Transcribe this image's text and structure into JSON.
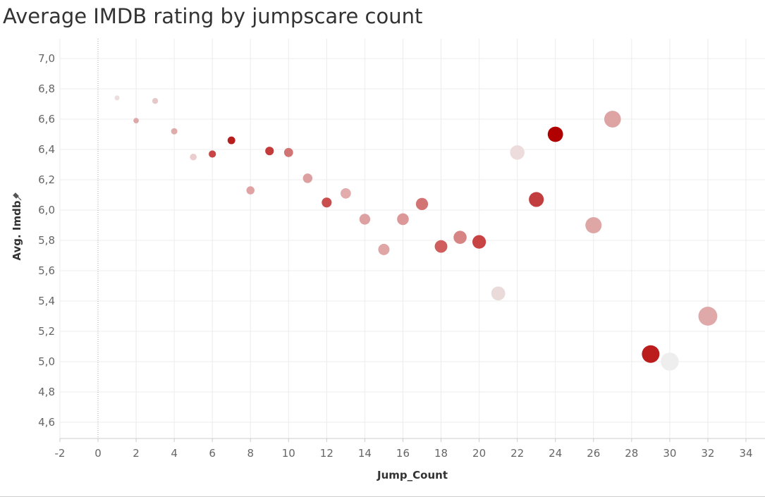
{
  "chart_data": {
    "type": "scatter",
    "title": "Average IMDB rating by jumpscare count",
    "xlabel": "Jump_Count",
    "ylabel": "Avg. Imdb",
    "ylabel_icon": "pin-icon",
    "xlim": [
      -3,
      35
    ],
    "ylim": [
      4.5,
      7.05
    ],
    "xticks": [
      -2,
      0,
      2,
      4,
      6,
      8,
      10,
      12,
      14,
      16,
      18,
      20,
      22,
      24,
      26,
      28,
      30,
      32,
      34
    ],
    "yticks": [
      "4,6",
      "4,8",
      "5,0",
      "5,2",
      "5,4",
      "5,6",
      "5,8",
      "6,0",
      "6,2",
      "6,4",
      "6,6",
      "6,8",
      "7,0"
    ],
    "ytick_values": [
      4.6,
      4.8,
      5.0,
      5.2,
      5.4,
      5.6,
      5.8,
      6.0,
      6.2,
      6.4,
      6.6,
      6.8,
      7.0
    ],
    "grid": true,
    "reference_line_x": 0,
    "size_encodes": "x",
    "color_scale": {
      "low": "#f0eeee",
      "high": "#b00000"
    },
    "points": [
      {
        "x": 1,
        "y": 6.74,
        "color": "#ecdede"
      },
      {
        "x": 2,
        "y": 6.59,
        "color": "#dea8a8"
      },
      {
        "x": 3,
        "y": 6.72,
        "color": "#e6c8c8"
      },
      {
        "x": 4,
        "y": 6.52,
        "color": "#dfabab"
      },
      {
        "x": 5,
        "y": 6.35,
        "color": "#eccdcd"
      },
      {
        "x": 6,
        "y": 6.37,
        "color": "#c94545"
      },
      {
        "x": 7,
        "y": 6.46,
        "color": "#b71f1f"
      },
      {
        "x": 8,
        "y": 6.13,
        "color": "#dfa3a3"
      },
      {
        "x": 9,
        "y": 6.39,
        "color": "#c53a3a"
      },
      {
        "x": 10,
        "y": 6.38,
        "color": "#d07474"
      },
      {
        "x": 11,
        "y": 6.21,
        "color": "#dca0a0"
      },
      {
        "x": 12,
        "y": 6.05,
        "color": "#cb4e4e"
      },
      {
        "x": 13,
        "y": 6.11,
        "color": "#e2acac"
      },
      {
        "x": 14,
        "y": 5.94,
        "color": "#dea1a1"
      },
      {
        "x": 15,
        "y": 5.74,
        "color": "#e0a6a6"
      },
      {
        "x": 16,
        "y": 5.94,
        "color": "#dc9898"
      },
      {
        "x": 17,
        "y": 6.04,
        "color": "#d27474"
      },
      {
        "x": 18,
        "y": 5.76,
        "color": "#d05e5e"
      },
      {
        "x": 19,
        "y": 5.82,
        "color": "#d78484"
      },
      {
        "x": 20,
        "y": 5.79,
        "color": "#c84444"
      },
      {
        "x": 21,
        "y": 5.45,
        "color": "#eadada"
      },
      {
        "x": 22,
        "y": 6.38,
        "color": "#ecdcdc"
      },
      {
        "x": 23,
        "y": 6.07,
        "color": "#c23d3d"
      },
      {
        "x": 24,
        "y": 6.5,
        "color": "#b00000"
      },
      {
        "x": 26,
        "y": 5.9,
        "color": "#dfa6a6"
      },
      {
        "x": 27,
        "y": 6.6,
        "color": "#dea3a3"
      },
      {
        "x": 29,
        "y": 5.05,
        "color": "#bb1c1c"
      },
      {
        "x": 30,
        "y": 5.0,
        "color": "#efeeee"
      },
      {
        "x": 32,
        "y": 5.3,
        "color": "#e0a9a9"
      }
    ]
  }
}
